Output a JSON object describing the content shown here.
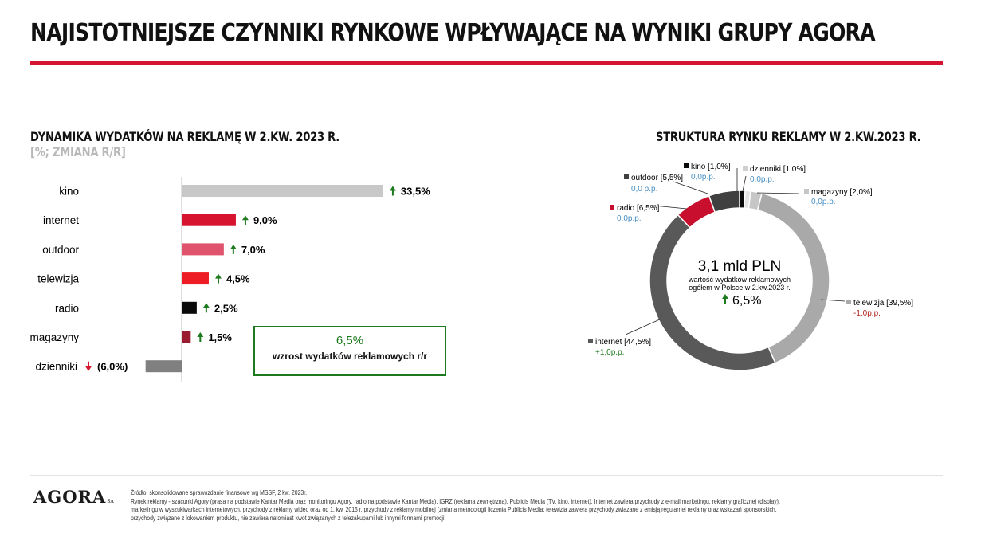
{
  "page_title": "NAJISTOTNIEJSZE CZYNNIKI RYNKOWE WPŁYWAJĄCE NA WYNIKI GRUPY AGORA",
  "colors": {
    "accent_red": "#d7142f",
    "up_arrow": "#1e7a1e",
    "down_arrow": "#d7142f",
    "negative_text": "#b22222",
    "pp_text": "#4a90c4"
  },
  "chart_data": [
    {
      "type": "bar",
      "orientation": "horizontal",
      "title": "DYNAMIKA WYDATKÓW NA REKLAMĘ W 2.KW. 2023 R.",
      "subtitle": "[%; ZMIANA R/R]",
      "categories": [
        "kino",
        "internet",
        "outdoor",
        "telewizja",
        "radio",
        "magazyny",
        "dzienniki"
      ],
      "values": [
        33.5,
        9.0,
        7.0,
        4.5,
        2.5,
        1.5,
        -6.0
      ],
      "value_labels": [
        "33,5%",
        "9,0%",
        "7,0%",
        "4,5%",
        "2,5%",
        "1,5%",
        "(6,0%)"
      ],
      "bar_colors": [
        "#c8c8c8",
        "#d7142f",
        "#e0536c",
        "#ee1c24",
        "#0a0a0a",
        "#9b1b30",
        "#808080"
      ],
      "callout": {
        "value": "6,5%",
        "text": "wzrost wydatków reklamowych r/r"
      }
    },
    {
      "type": "pie",
      "donut": true,
      "title": "STRUKTURA RYNKU REKLAMY W 2.KW.2023 R.",
      "center": {
        "value": "3,1 mld PLN",
        "line1": "wartość wydatków reklamowych",
        "line2": "ogółem w Polsce w 2.kw.2023 r.",
        "growth": "6,5%"
      },
      "slices": [
        {
          "name": "kino",
          "value": 1.0,
          "label": "[1,0%]",
          "change": "0,0p.p.",
          "color": "#0a0a0a"
        },
        {
          "name": "dzienniki",
          "value": 1.0,
          "label": "[1,0%]",
          "change": "0,0p.p.",
          "color": "#e3e3e3"
        },
        {
          "name": "magazyny",
          "value": 2.0,
          "label": "[2,0%]",
          "change": "0,0p.p.",
          "color": "#c6c6c6"
        },
        {
          "name": "telewizja",
          "value": 39.5,
          "label": "[39,5%]",
          "change": "-1,0p.p.",
          "color": "#a9a9a9"
        },
        {
          "name": "internet",
          "value": 44.5,
          "label": "[44,5%]",
          "change": "+1,0p.p.",
          "color": "#595959"
        },
        {
          "name": "radio",
          "value": 6.5,
          "label": "[6,5%]",
          "change": "0,0p.p.",
          "color": "#c8102e"
        },
        {
          "name": "outdoor",
          "value": 5.5,
          "label": "[5,5%]",
          "change": "0,0 p.p.",
          "color": "#404040"
        }
      ]
    }
  ],
  "footer": {
    "logo": "AGORA",
    "logo_suffix": "SA",
    "lines": [
      "Źródło: skonsolidowane sprawozdanie finansowe wg MSSF, 2 kw. 2023r.",
      "Rynek reklamy  - szacunki Agory (prasa na podstawie Kantar Media oraz monitoringu Agory, radio na podstawie Kantar Media), IGRZ (reklama zewnętrzna), Publicis Media (TV, kino, internet). Internet zawiera przychody z e-mail marketingu, reklamy graficznej (display),",
      "marketingu w wyszukiwarkach internetowych, przychody z reklamy wideo oraz od 1. kw. 2015 r. przychody z reklamy mobilnej (zmiana metodologii liczenia Publicis Media; telewizja zawiera przychody związane z emisją regularnej reklamy oraz wskazań sponsorskich,",
      "przychody związane z lokowaniem produktu, nie zawiera natomiast kwot związanych z telezakupami lub innymi formami promocji."
    ]
  }
}
